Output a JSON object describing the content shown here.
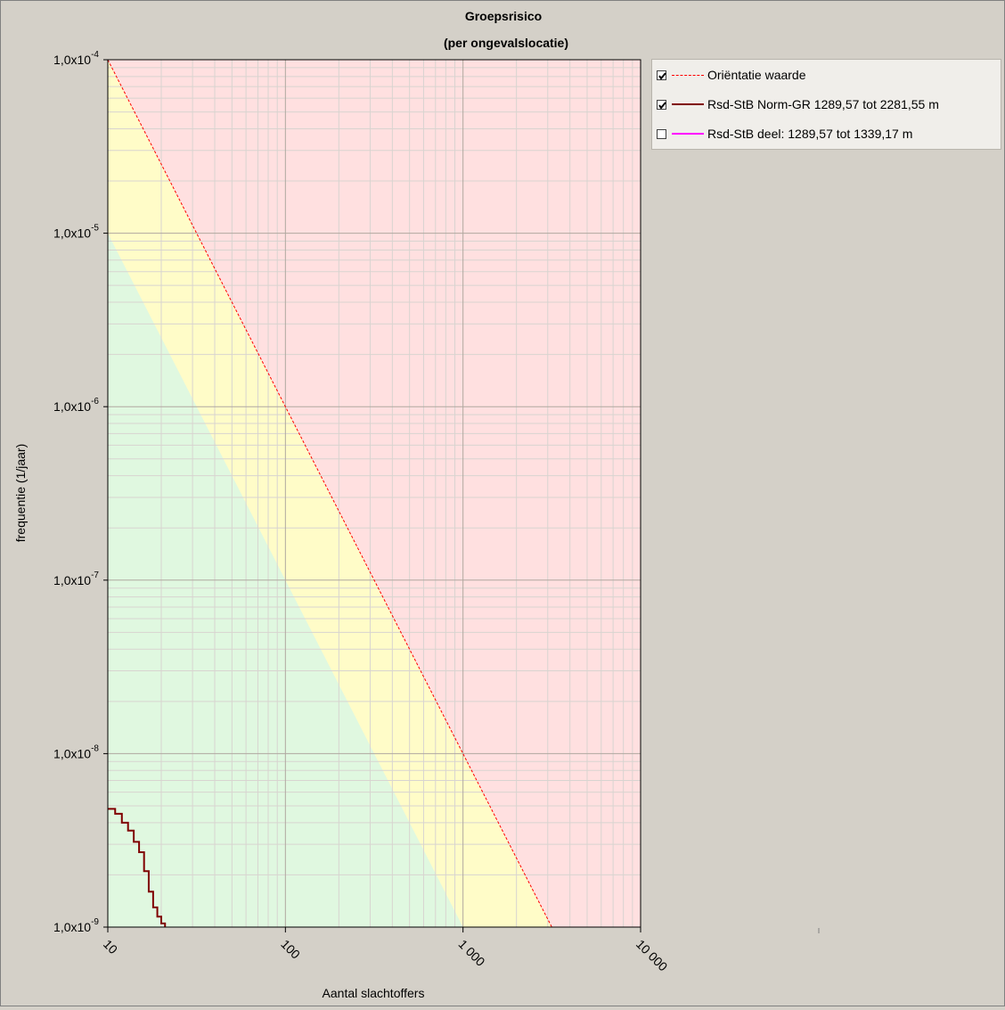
{
  "chart_data": {
    "type": "line",
    "title": "Groepsrisico",
    "subtitle": "(per ongevalslocatie)",
    "xlabel": "Aantal slachtoffers",
    "ylabel": "frequentie (1/jaar)",
    "xscale": "log",
    "yscale": "log",
    "xlim": [
      10,
      10000
    ],
    "ylim": [
      1e-09,
      0.0001
    ],
    "x_ticks": [
      {
        "value": 10,
        "label": "10"
      },
      {
        "value": 100,
        "label": "100"
      },
      {
        "value": 1000,
        "label": "1 000"
      },
      {
        "value": 10000,
        "label": "10 000"
      }
    ],
    "y_ticks": [
      {
        "value": 0.0001,
        "mantissa": "1,0x10",
        "exp": "-4"
      },
      {
        "value": 1e-05,
        "mantissa": "1,0x10",
        "exp": "-5"
      },
      {
        "value": 1e-06,
        "mantissa": "1,0x10",
        "exp": "-6"
      },
      {
        "value": 1e-07,
        "mantissa": "1,0x10",
        "exp": "-7"
      },
      {
        "value": 1e-08,
        "mantissa": "1,0x10",
        "exp": "-8"
      },
      {
        "value": 1e-09,
        "mantissa": "1,0x10",
        "exp": "-9"
      }
    ],
    "zones": [
      {
        "zone": "green",
        "color": "#e0f8e0",
        "below_line": [
          [
            10,
            1e-05
          ],
          [
            1000,
            1e-09
          ]
        ]
      },
      {
        "zone": "yellow",
        "color": "#fffcc8"
      },
      {
        "zone": "red",
        "color": "#ffe0e0",
        "above_line": [
          [
            10,
            0.0001
          ],
          [
            3162,
            1e-09
          ]
        ]
      }
    ],
    "grid": true,
    "legend_position": "right",
    "series": [
      {
        "name": "Oriëntatie waarde",
        "checked": true,
        "color": "#ff0000",
        "style": "dashed",
        "points": [
          [
            10,
            0.0001
          ],
          [
            3162,
            1e-09
          ]
        ]
      },
      {
        "name": "Rsd-StB Norm-GR 1289,57 tot 2281,55 m",
        "checked": true,
        "color": "#800000",
        "style": "step",
        "points": [
          [
            10,
            4.8e-09
          ],
          [
            11,
            4.5e-09
          ],
          [
            12,
            4e-09
          ],
          [
            13,
            3.6e-09
          ],
          [
            14,
            3.1e-09
          ],
          [
            15,
            2.7e-09
          ],
          [
            16,
            2.1e-09
          ],
          [
            17,
            1.6e-09
          ],
          [
            18,
            1.3e-09
          ],
          [
            19,
            1.15e-09
          ],
          [
            20,
            1.05e-09
          ],
          [
            21,
            1e-09
          ]
        ]
      },
      {
        "name": "Rsd-StB deel: 1289,57 tot 1339,17 m",
        "checked": false,
        "color": "#ff00ff",
        "style": "solid",
        "points": []
      }
    ]
  }
}
